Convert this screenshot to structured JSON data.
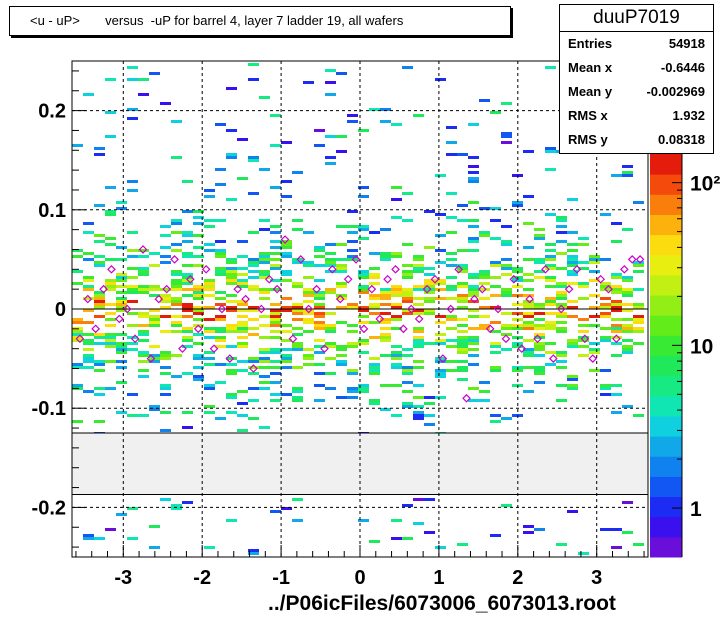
{
  "title": "<u - uP>       versus  -uP for barrel 4, layer 7 ladder 19, all wafers",
  "stats": {
    "name": "duuP7019",
    "rows": [
      {
        "key": "Entries",
        "value": "54918"
      },
      {
        "key": "Mean x",
        "value": "-0.6446"
      },
      {
        "key": "Mean y",
        "value": "-0.002969"
      },
      {
        "key": "RMS x",
        "value": "1.932"
      },
      {
        "key": "RMS y",
        "value": "0.08318"
      }
    ]
  },
  "footer": "../P06icFiles/6073006_6073013.root",
  "chart_data": {
    "type": "heatmap",
    "title": "<u - uP>       versus  -uP for barrel 4, layer 7 ladder 19, all wafers",
    "xlabel": "",
    "ylabel": "",
    "xlim": [
      -3.65,
      3.65
    ],
    "ylim": [
      -0.25,
      0.25
    ],
    "x_ticks": [
      -3,
      -2,
      -1,
      0,
      1,
      2,
      3
    ],
    "x_tick_labels": [
      "-3",
      "-2",
      "-1",
      "0",
      "1",
      "2",
      "3"
    ],
    "y_ticks": [
      -0.2,
      -0.1,
      0,
      0.1,
      0.2
    ],
    "y_tick_labels": [
      "-0.2",
      "-0.1",
      "0",
      "0.1",
      "0.2"
    ],
    "grid": true,
    "log_z": true,
    "z_range": [
      0.5,
      150
    ],
    "z_ticks": [
      1,
      10,
      100
    ],
    "z_tick_labels": [
      "1",
      "10",
      "10²"
    ],
    "blank_band_y": [
      -0.187,
      -0.125
    ],
    "profile_line_y": 0.0,
    "profile_x": [
      -3.55,
      -3.45,
      -3.35,
      -3.25,
      -3.15,
      -3.05,
      -2.95,
      -2.85,
      -2.75,
      -2.65,
      -2.55,
      -2.45,
      -2.35,
      -2.25,
      -2.15,
      -2.05,
      -1.95,
      -1.85,
      -1.75,
      -1.65,
      -1.55,
      -1.45,
      -1.35,
      -1.25,
      -1.15,
      -1.05,
      -0.95,
      -0.85,
      -0.75,
      -0.65,
      -0.55,
      -0.45,
      -0.35,
      -0.25,
      -0.15,
      -0.05,
      0.05,
      0.15,
      0.25,
      0.35,
      0.45,
      0.55,
      0.65,
      0.75,
      0.85,
      0.95,
      1.05,
      1.15,
      1.25,
      1.35,
      1.45,
      1.55,
      1.65,
      1.75,
      1.85,
      1.95,
      2.05,
      2.15,
      2.25,
      2.35,
      2.45,
      2.55,
      2.65,
      2.75,
      2.85,
      2.95,
      3.05,
      3.15,
      3.25,
      3.35,
      3.45,
      3.55
    ],
    "profile_y": [
      -0.03,
      0.01,
      -0.02,
      0.02,
      0.04,
      -0.01,
      0.0,
      -0.03,
      0.06,
      -0.05,
      0.01,
      0.02,
      0.05,
      -0.04,
      0.03,
      -0.02,
      0.04,
      -0.04,
      0.0,
      -0.05,
      0.02,
      0.01,
      -0.06,
      0.0,
      0.03,
      0.02,
      0.07,
      -0.03,
      0.05,
      0.0,
      0.02,
      -0.04,
      0.04,
      0.01,
      0.03,
      0.05,
      -0.02,
      0.02,
      -0.01,
      0.03,
      0.04,
      -0.02,
      0.0,
      -0.01,
      0.02,
      0.03,
      -0.05,
      0.0,
      0.04,
      -0.09,
      0.01,
      0.02,
      -0.02,
      0.0,
      -0.03,
      0.03,
      -0.04,
      0.01,
      -0.03,
      0.04,
      -0.05,
      0.0,
      0.02,
      0.04,
      -0.03,
      -0.05,
      0.03,
      0.02,
      -0.03,
      0.04,
      0.05,
      0.05
    ]
  }
}
